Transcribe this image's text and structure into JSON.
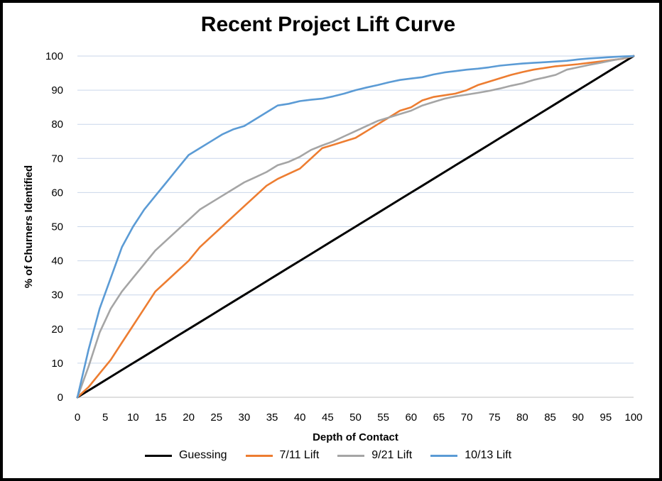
{
  "chart_data": {
    "type": "line",
    "title": "Recent Project Lift Curve",
    "xlabel": "Depth of Contact",
    "ylabel": "% of Churners Identified",
    "xlim": [
      0,
      100
    ],
    "ylim": [
      0,
      100
    ],
    "x_ticks": [
      "0",
      "5",
      "10",
      "15",
      "20",
      "25",
      "30",
      "35",
      "40",
      "45",
      "50",
      "55",
      "60",
      "65",
      "70",
      "75",
      "80",
      "85",
      "90",
      "95",
      "100"
    ],
    "y_ticks": [
      "0",
      "10",
      "20",
      "30",
      "40",
      "50",
      "60",
      "70",
      "80",
      "90",
      "100"
    ],
    "grid": "horizontal",
    "legend_position": "bottom",
    "x": [
      0,
      2,
      4,
      6,
      8,
      10,
      12,
      14,
      16,
      18,
      20,
      22,
      24,
      26,
      28,
      30,
      32,
      34,
      36,
      38,
      40,
      42,
      44,
      46,
      48,
      50,
      52,
      54,
      56,
      58,
      60,
      62,
      64,
      66,
      68,
      70,
      72,
      74,
      76,
      78,
      80,
      82,
      84,
      86,
      88,
      90,
      92,
      94,
      96,
      98,
      100
    ],
    "series": [
      {
        "name": "Guessing",
        "color": "#000000",
        "values": [
          0,
          2,
          4,
          6,
          8,
          10,
          12,
          14,
          16,
          18,
          20,
          22,
          24,
          26,
          28,
          30,
          32,
          34,
          36,
          38,
          40,
          42,
          44,
          46,
          48,
          50,
          52,
          54,
          56,
          58,
          60,
          62,
          64,
          66,
          68,
          70,
          72,
          74,
          76,
          78,
          80,
          82,
          84,
          86,
          88,
          90,
          92,
          94,
          96,
          98,
          100
        ]
      },
      {
        "name": "7/11 Lift",
        "color": "#ED7D31",
        "values": [
          0,
          3,
          7,
          11,
          16,
          21,
          26,
          31,
          34,
          37,
          40,
          44,
          47,
          50,
          53,
          56,
          59,
          62,
          64,
          65.5,
          67,
          70,
          73,
          74,
          75,
          76,
          78,
          80,
          82,
          84,
          85,
          87,
          88,
          88.5,
          89,
          90,
          91.5,
          92.5,
          93.5,
          94.5,
          95.3,
          96,
          96.5,
          97,
          97.3,
          97.6,
          98,
          98.4,
          98.8,
          99.2,
          100
        ]
      },
      {
        "name": "9/21 Lift",
        "color": "#A5A5A5",
        "values": [
          0,
          9,
          19,
          26,
          31,
          35,
          39,
          43,
          46,
          49,
          52,
          55,
          57,
          59,
          61,
          63,
          64.5,
          66,
          68,
          69,
          70.5,
          72.5,
          73.8,
          75,
          76.5,
          78,
          79.5,
          81,
          82,
          83,
          84,
          85.5,
          86.5,
          87.5,
          88.2,
          88.7,
          89.2,
          89.8,
          90.5,
          91.3,
          92,
          93,
          93.7,
          94.5,
          96,
          96.7,
          97.4,
          98,
          98.7,
          99.3,
          100
        ]
      },
      {
        "name": "10/13 Lift",
        "color": "#5B9BD5",
        "values": [
          0,
          14,
          26,
          35,
          44,
          50,
          55,
          59,
          63,
          67,
          71,
          73,
          75,
          77,
          78.5,
          79.5,
          81.5,
          83.5,
          85.5,
          86,
          86.8,
          87.2,
          87.5,
          88.2,
          89,
          90,
          90.8,
          91.5,
          92.3,
          93,
          93.4,
          93.8,
          94.6,
          95.2,
          95.6,
          96,
          96.3,
          96.7,
          97.2,
          97.5,
          97.8,
          98,
          98.2,
          98.4,
          98.6,
          99,
          99.3,
          99.5,
          99.7,
          99.9,
          100
        ]
      }
    ]
  }
}
